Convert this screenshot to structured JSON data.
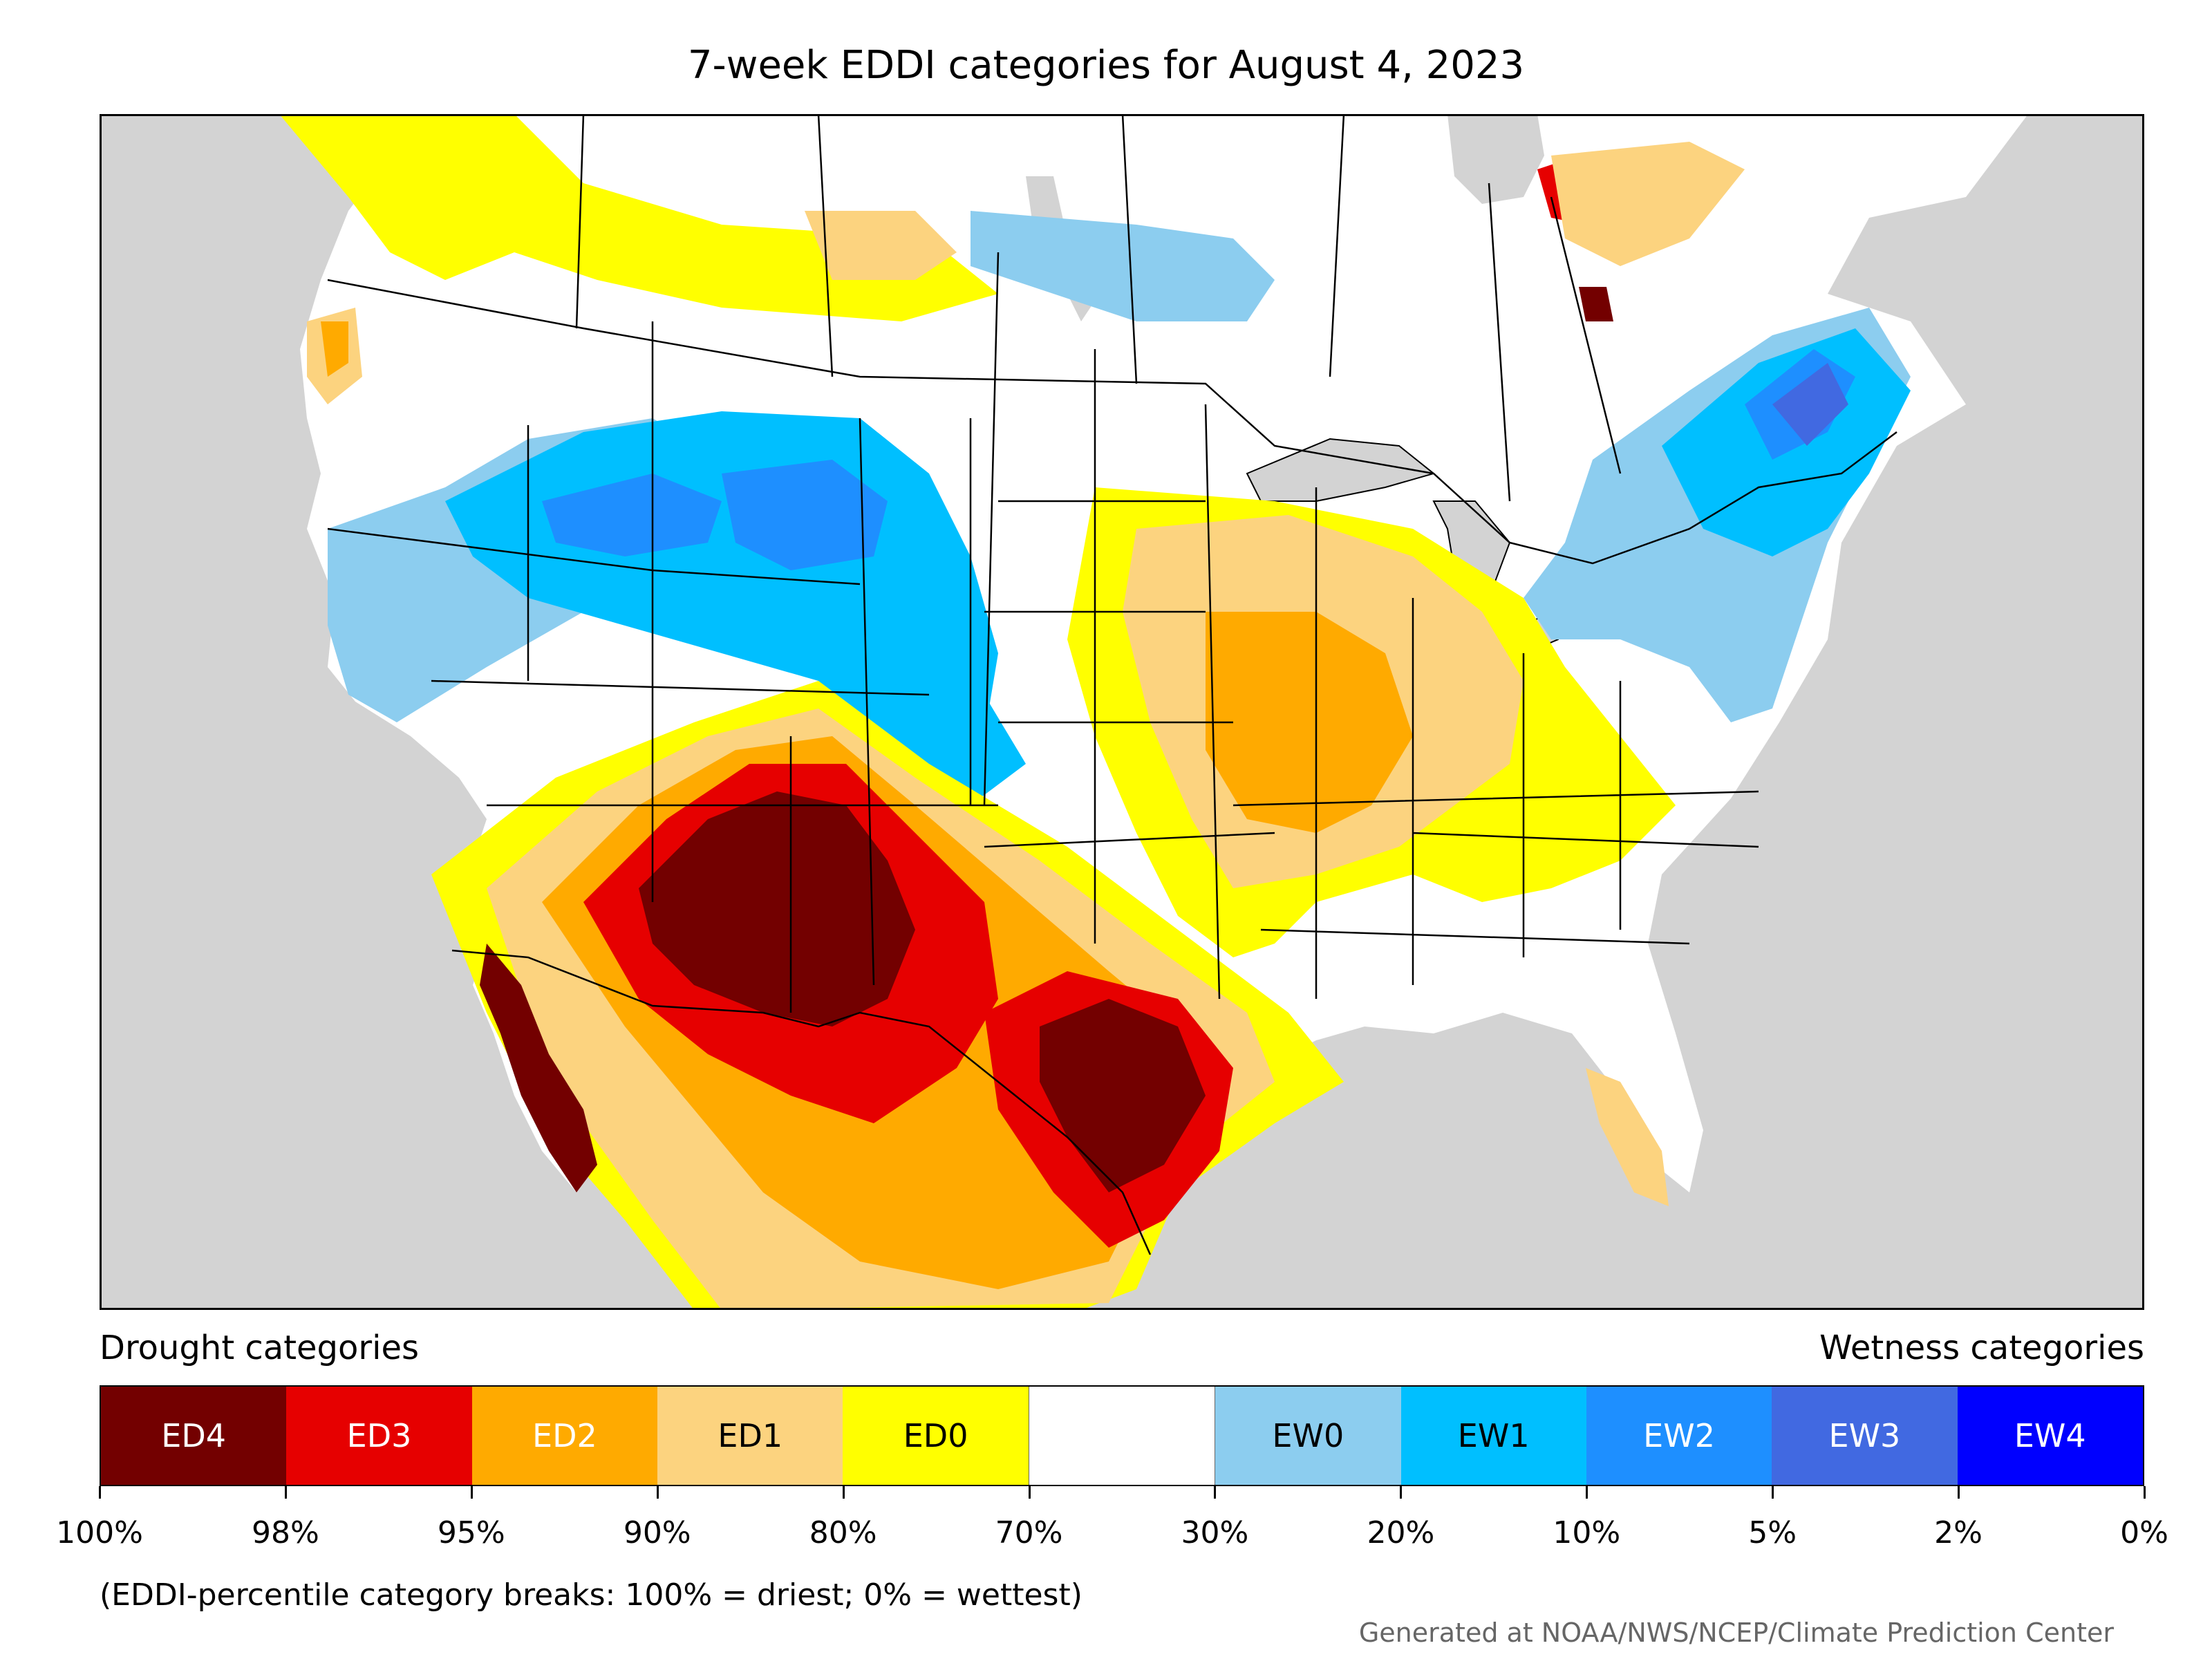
{
  "title": "7-week EDDI categories for August 4, 2023",
  "legend": {
    "drought_label": "Drought categories",
    "wetness_label": "Wetness categories",
    "categories": [
      {
        "label": "ED4",
        "color": "#730000",
        "text_color": "#ffffff"
      },
      {
        "label": "ED3",
        "color": "#e60000",
        "text_color": "#ffffff"
      },
      {
        "label": "ED2",
        "color": "#ffaa00",
        "text_color": "#ffffff"
      },
      {
        "label": "ED1",
        "color": "#fcd37f",
        "text_color": "#000000"
      },
      {
        "label": "ED0",
        "color": "#ffff00",
        "text_color": "#000000"
      },
      {
        "label": "",
        "color": "#ffffff",
        "text_color": "#000000"
      },
      {
        "label": "EW0",
        "color": "#8ccdef",
        "text_color": "#000000"
      },
      {
        "label": "EW1",
        "color": "#00bfff",
        "text_color": "#000000"
      },
      {
        "label": "EW2",
        "color": "#1e8fff",
        "text_color": "#ffffff"
      },
      {
        "label": "EW3",
        "color": "#4169e1",
        "text_color": "#ffffff"
      },
      {
        "label": "EW4",
        "color": "#0000ff",
        "text_color": "#ffffff"
      }
    ],
    "tick_labels": [
      "100%",
      "98%",
      "95%",
      "90%",
      "80%",
      "70%",
      "30%",
      "20%",
      "10%",
      "5%",
      "2%",
      "0%"
    ]
  },
  "note": "(EDDI-percentile category breaks: 100% = driest; 0% = wettest)",
  "credit": "Generated at NOAA/NWS/NCEP/Climate Prediction Center",
  "map": {
    "ocean_color": "#d3d3d3",
    "land_color": "#ffffff",
    "border_color": "#000000"
  }
}
